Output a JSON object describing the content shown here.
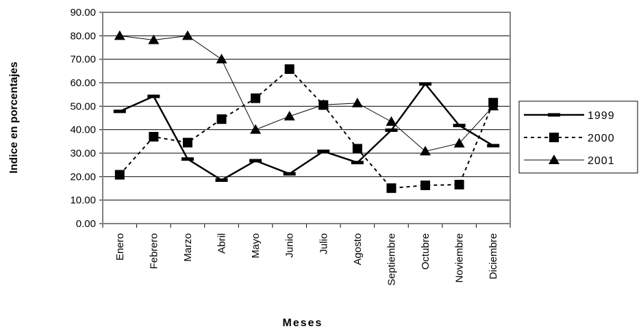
{
  "chart_data": {
    "type": "line",
    "title": "",
    "xlabel": "Meses",
    "ylabel": "Indice en porcentajes",
    "ylim": [
      0,
      90
    ],
    "yticks": [
      "0.00",
      "10.00",
      "20.00",
      "30.00",
      "40.00",
      "50.00",
      "60.00",
      "70.00",
      "80.00",
      "90.00"
    ],
    "categories": [
      "Enero",
      "Febrero",
      "Marzo",
      "Abril",
      "Mayo",
      "Junio",
      "Julio",
      "Agosto",
      "Septiembre",
      "Octubre",
      "Noviembre",
      "Diciembre"
    ],
    "grid": true,
    "legend": "right",
    "series": [
      {
        "name": "1999",
        "marker": "dash",
        "line": "solid-thick",
        "values": [
          47.8,
          54.2,
          27.5,
          18.5,
          26.8,
          21.2,
          30.8,
          26.0,
          39.8,
          59.5,
          41.8,
          33.2
        ]
      },
      {
        "name": "2000",
        "marker": "square",
        "line": "dashed",
        "values": [
          20.8,
          37.0,
          34.5,
          44.5,
          53.4,
          65.8,
          50.5,
          31.9,
          15.1,
          16.3,
          16.6,
          51.5
        ]
      },
      {
        "name": "2001",
        "marker": "triangle",
        "line": "solid-thin",
        "values": [
          80.0,
          78.2,
          80.0,
          70.0,
          40.0,
          45.7,
          50.6,
          51.3,
          43.4,
          30.8,
          34.2,
          50.0
        ]
      }
    ]
  }
}
